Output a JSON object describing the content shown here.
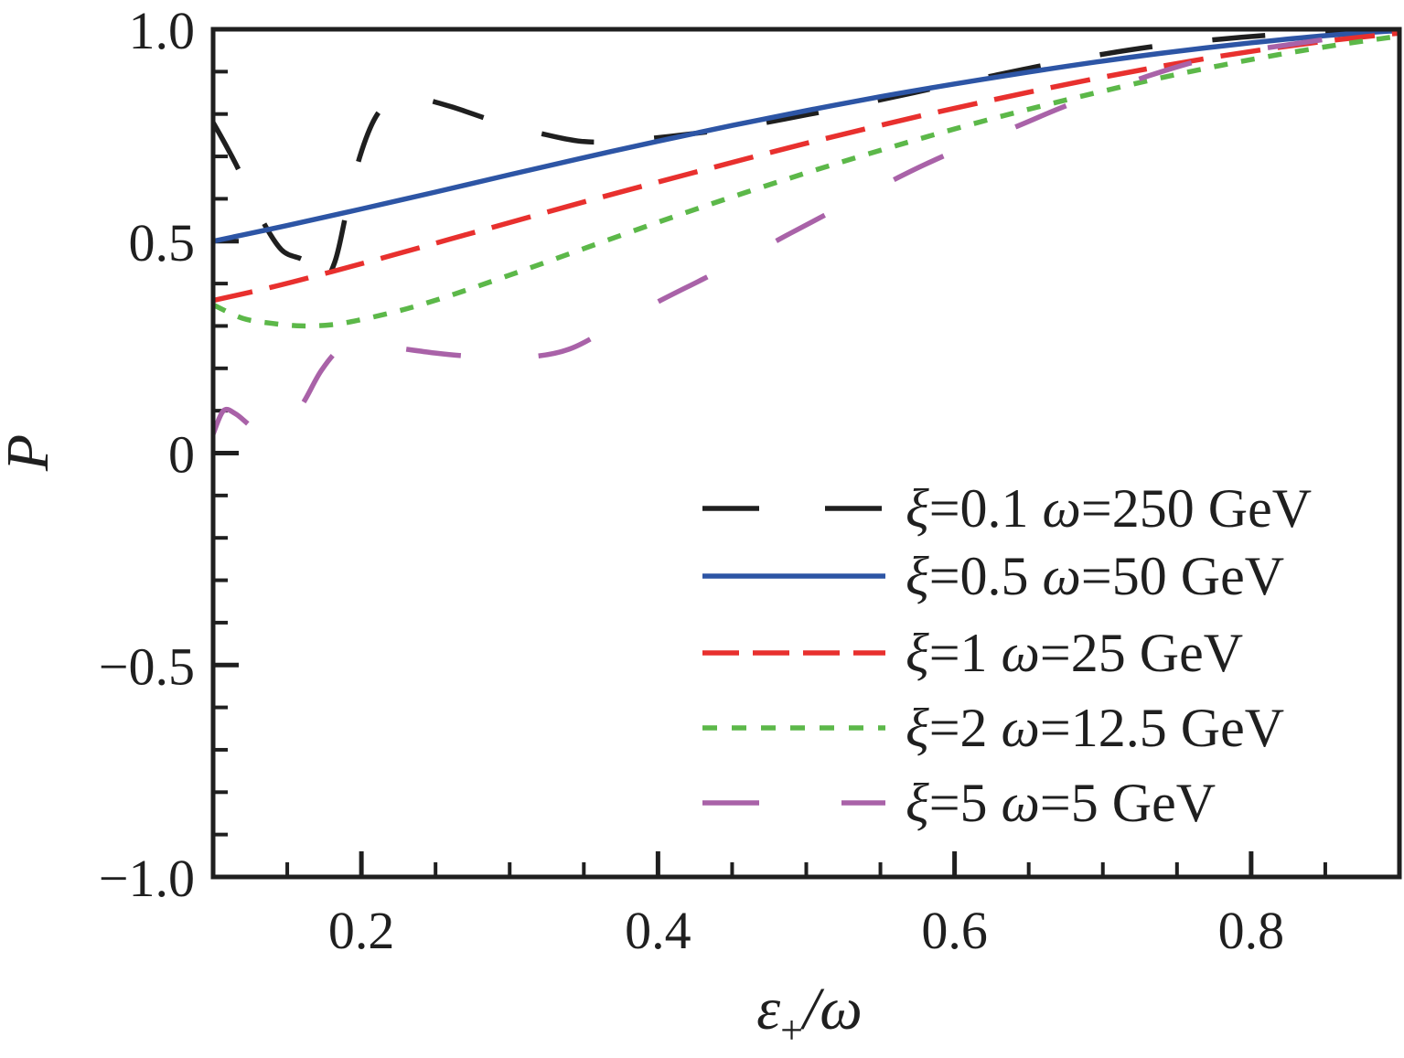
{
  "chart_data": {
    "type": "line",
    "title": "",
    "xlabel": "ε+/ω",
    "xlabel_parts": {
      "base": "ε",
      "subscript": "+",
      "suffix": "/ω"
    },
    "ylabel": "P",
    "xlim": [
      0.1,
      0.9
    ],
    "ylim": [
      -1.0,
      1.0
    ],
    "xticks": [
      0.2,
      0.4,
      0.6,
      0.8
    ],
    "xtick_labels": [
      "0.2",
      "0.4",
      "0.6",
      "0.8"
    ],
    "yticks": [
      1.0,
      0.5,
      0.0,
      -0.5,
      -1.0
    ],
    "ytick_labels": [
      "1.0",
      "0.5",
      "0",
      "−0.5",
      "−1.0"
    ],
    "x_minor_step": 0.05,
    "y_minor_step": 0.1,
    "grid": false,
    "frame_color": "#1f1f1f",
    "background": "#ffffff",
    "legend_position": "lower-right",
    "series": [
      {
        "id": "xi-0p1-omega-250",
        "label": "ξ=0.1 ω=250 GeV",
        "label_parts": {
          "xi": "0.1",
          "omega": "250",
          "unit": "GeV"
        },
        "color": "#1f1f1f",
        "line_style": "long-dash",
        "dash": [
          58,
          66
        ],
        "legend_dash": [
          62,
          72
        ],
        "points": [
          [
            0.1,
            0.78
          ],
          [
            0.108,
            0.73
          ],
          [
            0.117,
            0.67
          ],
          [
            0.13,
            0.57
          ],
          [
            0.146,
            0.48
          ],
          [
            0.163,
            0.45
          ],
          [
            0.171,
            0.385
          ],
          [
            0.182,
            0.45
          ],
          [
            0.19,
            0.57
          ],
          [
            0.199,
            0.7
          ],
          [
            0.21,
            0.795
          ],
          [
            0.222,
            0.833
          ],
          [
            0.235,
            0.84
          ],
          [
            0.26,
            0.818
          ],
          [
            0.29,
            0.783
          ],
          [
            0.32,
            0.755
          ],
          [
            0.35,
            0.735
          ],
          [
            0.38,
            0.738
          ],
          [
            0.42,
            0.752
          ],
          [
            0.46,
            0.772
          ],
          [
            0.5,
            0.798
          ],
          [
            0.54,
            0.826
          ],
          [
            0.58,
            0.856
          ],
          [
            0.62,
            0.886
          ],
          [
            0.66,
            0.915
          ],
          [
            0.7,
            0.941
          ],
          [
            0.74,
            0.962
          ],
          [
            0.78,
            0.977
          ],
          [
            0.82,
            0.988
          ],
          [
            0.86,
            0.995
          ],
          [
            0.9,
            0.999
          ]
        ]
      },
      {
        "id": "xi-0p5-omega-50",
        "label": "ξ=0.5 ω=50 GeV",
        "label_parts": {
          "xi": "0.5",
          "omega": "50",
          "unit": "GeV"
        },
        "color": "#2d55a5",
        "line_style": "solid",
        "dash": [],
        "legend_dash": [],
        "points": [
          [
            0.1,
            0.5
          ],
          [
            0.15,
            0.537
          ],
          [
            0.2,
            0.576
          ],
          [
            0.25,
            0.616
          ],
          [
            0.3,
            0.657
          ],
          [
            0.35,
            0.697
          ],
          [
            0.4,
            0.736
          ],
          [
            0.45,
            0.773
          ],
          [
            0.5,
            0.808
          ],
          [
            0.55,
            0.841
          ],
          [
            0.6,
            0.871
          ],
          [
            0.65,
            0.899
          ],
          [
            0.7,
            0.925
          ],
          [
            0.75,
            0.948
          ],
          [
            0.8,
            0.968
          ],
          [
            0.85,
            0.985
          ],
          [
            0.9,
            0.997
          ]
        ]
      },
      {
        "id": "xi-1-omega-25",
        "label": "ξ=1 ω=25 GeV",
        "label_parts": {
          "xi": "1",
          "omega": "25",
          "unit": "GeV"
        },
        "color": "#e8302e",
        "line_style": "dashed",
        "dash": [
          44,
          19
        ],
        "legend_dash": [
          40,
          15
        ],
        "points": [
          [
            0.1,
            0.36
          ],
          [
            0.14,
            0.392
          ],
          [
            0.18,
            0.428
          ],
          [
            0.22,
            0.466
          ],
          [
            0.26,
            0.505
          ],
          [
            0.3,
            0.544
          ],
          [
            0.34,
            0.583
          ],
          [
            0.38,
            0.621
          ],
          [
            0.42,
            0.658
          ],
          [
            0.46,
            0.695
          ],
          [
            0.5,
            0.731
          ],
          [
            0.54,
            0.765
          ],
          [
            0.58,
            0.798
          ],
          [
            0.62,
            0.829
          ],
          [
            0.66,
            0.859
          ],
          [
            0.7,
            0.887
          ],
          [
            0.74,
            0.913
          ],
          [
            0.78,
            0.937
          ],
          [
            0.82,
            0.958
          ],
          [
            0.86,
            0.976
          ],
          [
            0.9,
            0.991
          ]
        ]
      },
      {
        "id": "xi-2-omega-12p5",
        "label": "ξ=2 ω=12.5 GeV",
        "label_parts": {
          "xi": "2",
          "omega": "12.5",
          "unit": "GeV"
        },
        "color": "#5cb849",
        "line_style": "dotted",
        "dash": [
          15,
          15
        ],
        "legend_dash": [
          16,
          16
        ],
        "points": [
          [
            0.1,
            0.35
          ],
          [
            0.12,
            0.318
          ],
          [
            0.14,
            0.306
          ],
          [
            0.16,
            0.3
          ],
          [
            0.18,
            0.303
          ],
          [
            0.2,
            0.315
          ],
          [
            0.23,
            0.34
          ],
          [
            0.26,
            0.372
          ],
          [
            0.3,
            0.42
          ],
          [
            0.34,
            0.47
          ],
          [
            0.38,
            0.52
          ],
          [
            0.42,
            0.569
          ],
          [
            0.46,
            0.616
          ],
          [
            0.5,
            0.661
          ],
          [
            0.54,
            0.704
          ],
          [
            0.58,
            0.745
          ],
          [
            0.62,
            0.784
          ],
          [
            0.66,
            0.82
          ],
          [
            0.7,
            0.854
          ],
          [
            0.74,
            0.886
          ],
          [
            0.78,
            0.915
          ],
          [
            0.82,
            0.941
          ],
          [
            0.86,
            0.964
          ],
          [
            0.9,
            0.984
          ]
        ]
      },
      {
        "id": "xi-5-omega-5",
        "label": "ξ=5 ω=5 GeV",
        "label_parts": {
          "xi": "5",
          "omega": "5",
          "unit": "GeV"
        },
        "color": "#a962a8",
        "line_style": "sparse-long-dash",
        "dash": [
          60,
          85
        ],
        "legend_dash": [
          62,
          90
        ],
        "points": [
          [
            0.1,
            0.045
          ],
          [
            0.107,
            0.1
          ],
          [
            0.115,
            0.093
          ],
          [
            0.126,
            0.062
          ],
          [
            0.138,
            0.035
          ],
          [
            0.149,
            0.06
          ],
          [
            0.161,
            0.12
          ],
          [
            0.173,
            0.195
          ],
          [
            0.186,
            0.247
          ],
          [
            0.2,
            0.258
          ],
          [
            0.22,
            0.25
          ],
          [
            0.25,
            0.236
          ],
          [
            0.28,
            0.227
          ],
          [
            0.31,
            0.226
          ],
          [
            0.34,
            0.245
          ],
          [
            0.37,
            0.3
          ],
          [
            0.4,
            0.357
          ],
          [
            0.43,
            0.41
          ],
          [
            0.46,
            0.463
          ],
          [
            0.49,
            0.52
          ],
          [
            0.52,
            0.575
          ],
          [
            0.55,
            0.629
          ],
          [
            0.58,
            0.681
          ],
          [
            0.61,
            0.727
          ],
          [
            0.64,
            0.768
          ],
          [
            0.67,
            0.812
          ],
          [
            0.7,
            0.852
          ],
          [
            0.73,
            0.889
          ],
          [
            0.76,
            0.921
          ],
          [
            0.79,
            0.945
          ],
          [
            0.82,
            0.961
          ],
          [
            0.85,
            0.976
          ],
          [
            0.875,
            0.988
          ],
          [
            0.9,
            0.998
          ]
        ]
      }
    ]
  }
}
